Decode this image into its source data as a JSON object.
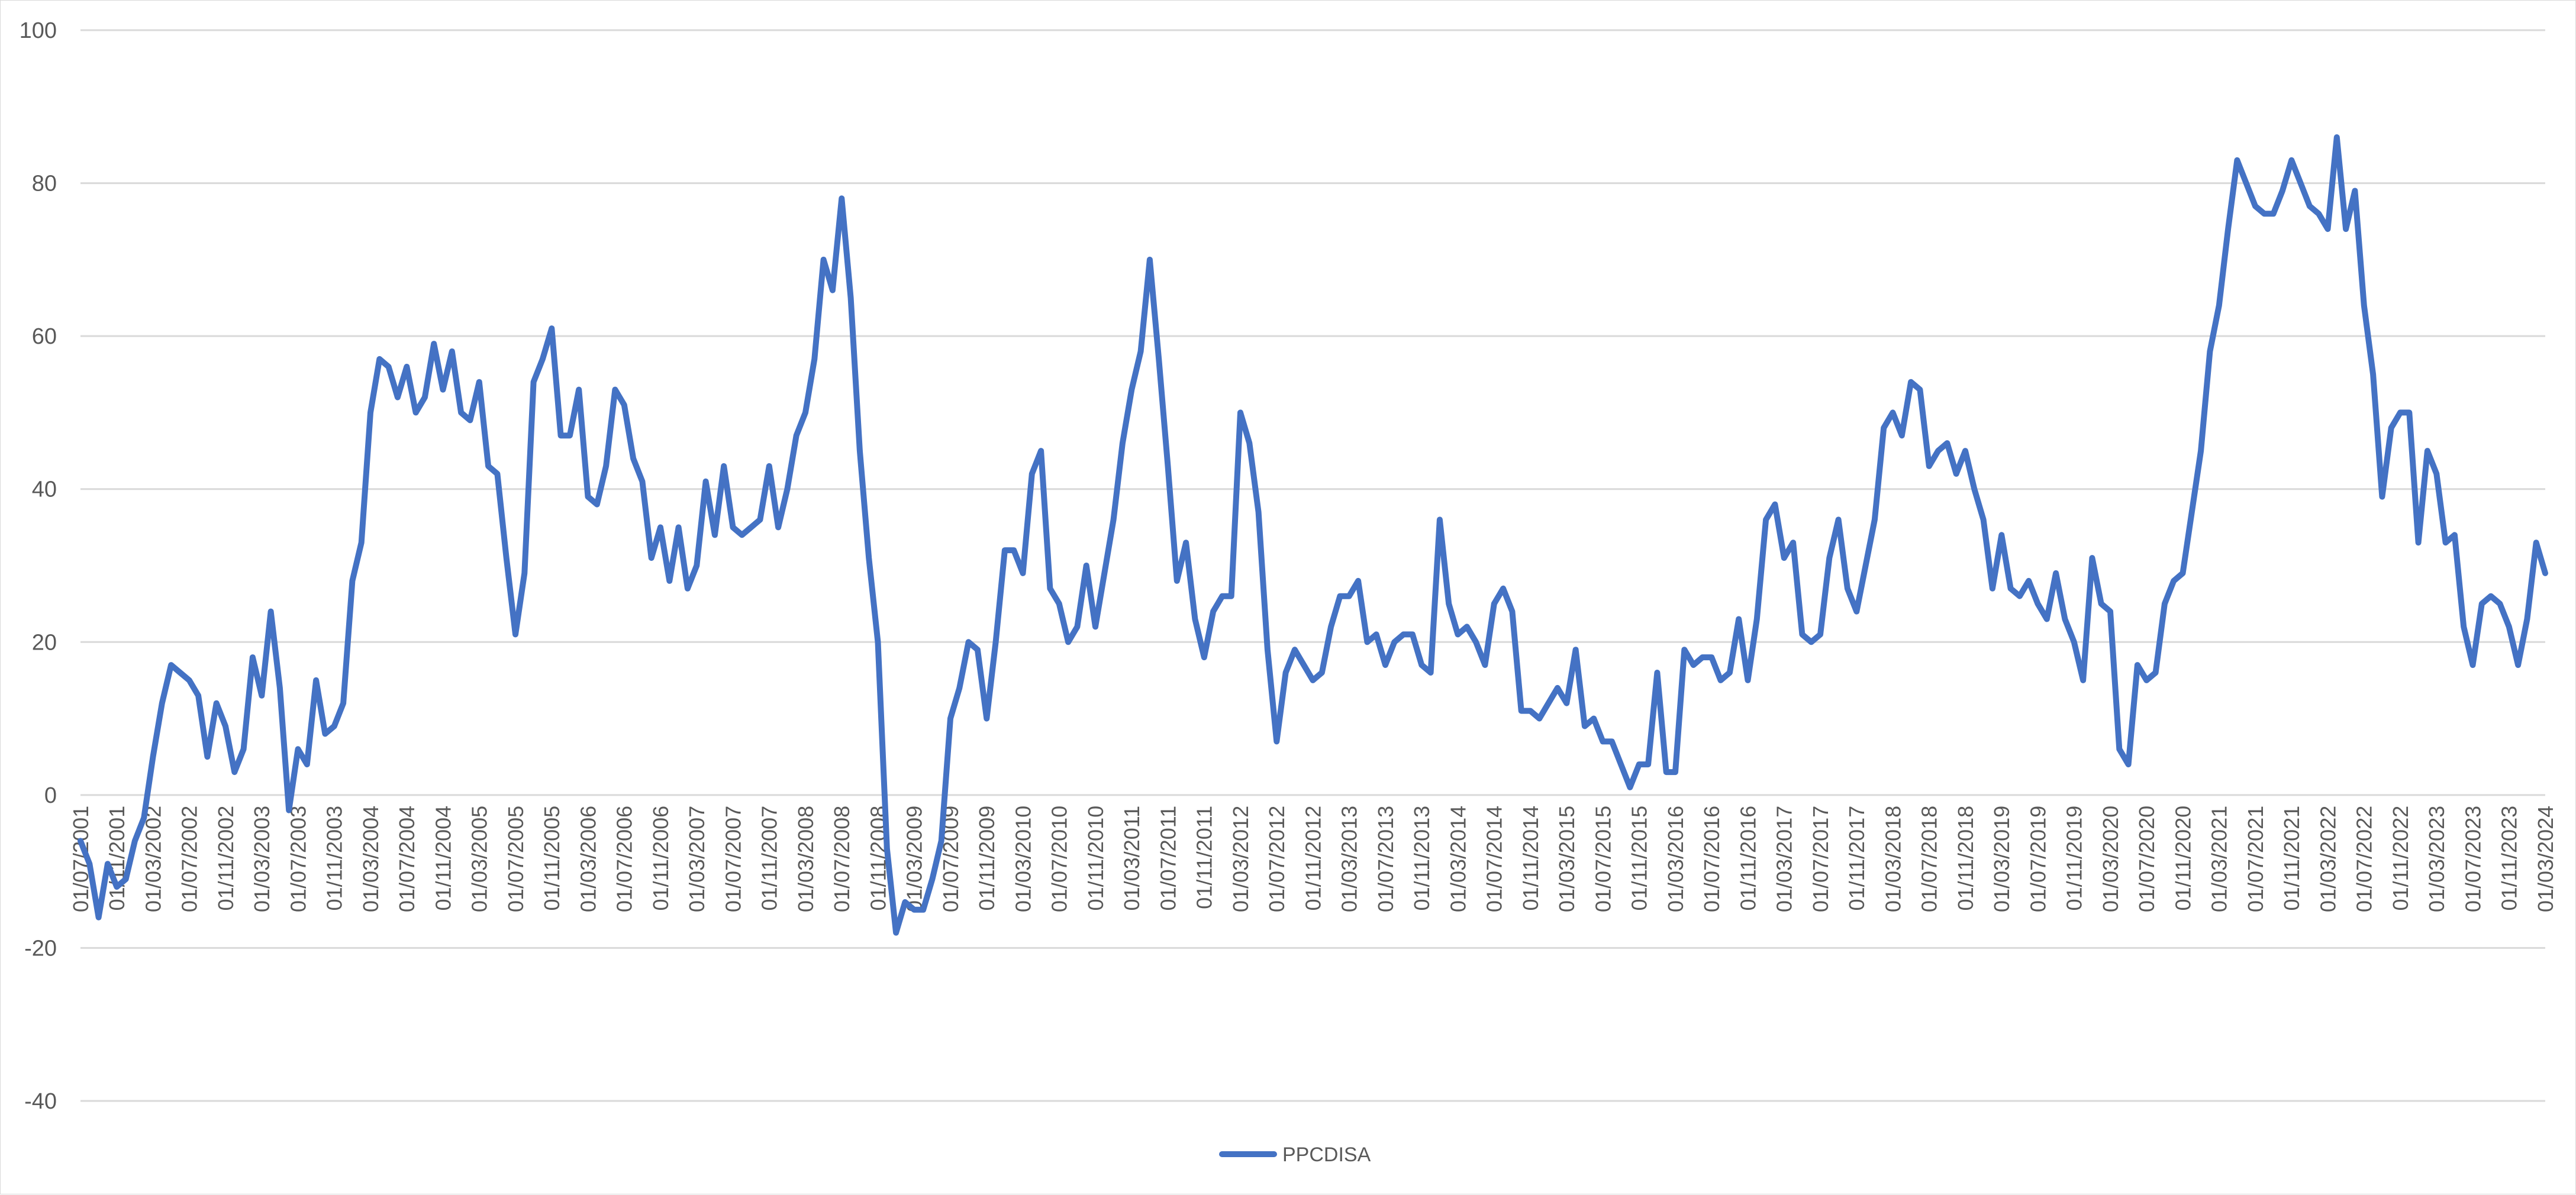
{
  "chart_data": {
    "type": "line",
    "title": "",
    "xlabel": "",
    "ylabel": "",
    "ylim": [
      -40,
      100
    ],
    "y_ticks": [
      -40,
      -20,
      0,
      20,
      40,
      60,
      80,
      100
    ],
    "grid": true,
    "legend": "bottom-center",
    "x_start": "2001-07",
    "x_step_months": 1,
    "x_tick_labels": [
      "01/07/2001",
      "01/11/2001",
      "01/03/2002",
      "01/07/2002",
      "01/11/2002",
      "01/03/2003",
      "01/07/2003",
      "01/11/2003",
      "01/03/2004",
      "01/07/2004",
      "01/11/2004",
      "01/03/2005",
      "01/07/2005",
      "01/11/2005",
      "01/03/2006",
      "01/07/2006",
      "01/11/2006",
      "01/03/2007",
      "01/07/2007",
      "01/11/2007",
      "01/03/2008",
      "01/07/2008",
      "01/11/2008",
      "01/03/2009",
      "01/07/2009",
      "01/11/2009",
      "01/03/2010",
      "01/07/2010",
      "01/11/2010",
      "01/03/2011",
      "01/07/2011",
      "01/11/2011",
      "01/03/2012",
      "01/07/2012",
      "01/11/2012",
      "01/03/2013",
      "01/07/2013",
      "01/11/2013",
      "01/03/2014",
      "01/07/2014",
      "01/11/2014",
      "01/03/2015",
      "01/07/2015",
      "01/11/2015",
      "01/03/2016",
      "01/07/2016",
      "01/11/2016",
      "01/03/2017",
      "01/07/2017",
      "01/11/2017",
      "01/03/2018",
      "01/07/2018",
      "01/11/2018",
      "01/03/2019",
      "01/07/2019",
      "01/11/2019",
      "01/03/2020",
      "01/07/2020",
      "01/11/2020",
      "01/03/2021",
      "01/07/2021",
      "01/11/2021",
      "01/03/2022",
      "01/07/2022",
      "01/11/2022",
      "01/03/2023",
      "01/07/2023",
      "01/11/2023",
      "01/03/2024"
    ],
    "series": [
      {
        "name": "PPCDISA",
        "color": "#4472c4",
        "values": [
          -6,
          -9,
          -16,
          -9,
          -12,
          -11,
          -6,
          -3,
          5,
          12,
          17,
          16,
          15,
          13,
          5,
          12,
          9,
          3,
          6,
          18,
          13,
          24,
          14,
          -2,
          6,
          4,
          15,
          8,
          9,
          12,
          28,
          33,
          50,
          57,
          56,
          52,
          56,
          50,
          52,
          59,
          53,
          58,
          50,
          49,
          54,
          43,
          42,
          31,
          21,
          29,
          54,
          57,
          61,
          47,
          47,
          53,
          39,
          38,
          43,
          53,
          51,
          44,
          41,
          31,
          35,
          28,
          35,
          27,
          30,
          41,
          34,
          43,
          35,
          34,
          35,
          36,
          43,
          35,
          40,
          47,
          50,
          57,
          70,
          66,
          78,
          65,
          45,
          31,
          20,
          -7,
          -18,
          -14,
          -15,
          -15,
          -11,
          -6,
          10,
          14,
          20,
          19,
          10,
          20,
          32,
          32,
          29,
          42,
          45,
          27,
          25,
          20,
          22,
          30,
          22,
          29,
          36,
          46,
          53,
          58,
          70,
          57,
          43,
          28,
          33,
          23,
          18,
          24,
          26,
          26,
          50,
          46,
          37,
          19,
          7,
          16,
          19,
          17,
          15,
          16,
          22,
          26,
          26,
          28,
          20,
          21,
          17,
          20,
          21,
          21,
          17,
          16,
          36,
          25,
          21,
          22,
          20,
          17,
          25,
          27,
          24,
          11,
          11,
          10,
          12,
          14,
          12,
          19,
          9,
          10,
          7,
          7,
          4,
          1,
          4,
          4,
          16,
          3,
          3,
          19,
          17,
          18,
          18,
          15,
          16,
          23,
          15,
          23,
          36,
          38,
          31,
          33,
          21,
          20,
          21,
          31,
          36,
          27,
          24,
          30,
          36,
          48,
          50,
          47,
          54,
          53,
          43,
          45,
          46,
          42,
          45,
          40,
          36,
          27,
          34,
          27,
          26,
          28,
          25,
          23,
          29,
          23,
          20,
          15,
          31,
          25,
          24,
          6,
          4,
          17,
          15,
          16,
          25,
          28,
          29,
          37,
          45,
          58,
          64,
          74,
          83,
          80,
          77,
          76,
          76,
          79,
          83,
          80,
          77,
          76,
          74,
          86,
          74,
          79,
          64,
          55,
          39,
          48,
          50,
          50,
          33,
          45,
          42,
          33,
          34,
          22,
          17,
          25,
          26,
          25,
          22,
          17,
          23,
          33,
          29
        ]
      }
    ]
  }
}
